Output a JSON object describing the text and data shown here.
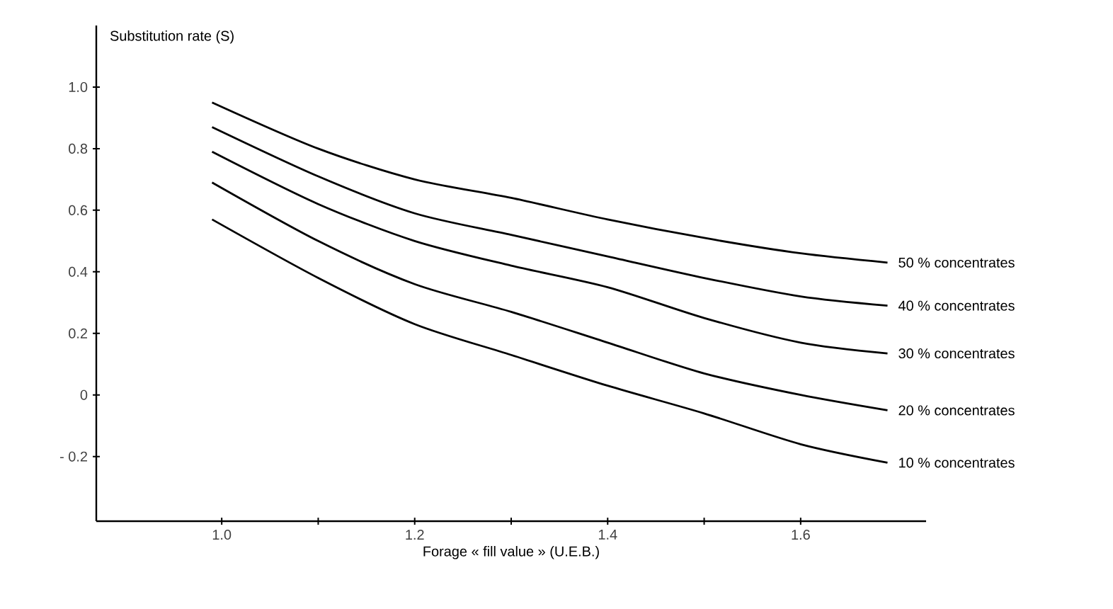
{
  "chart_data": {
    "type": "line",
    "xlabel": "Forage « fill value » (U.E.B.)",
    "ylabel": "Substitution rate (S)",
    "x": [
      0.99,
      1.1,
      1.2,
      1.3,
      1.4,
      1.5,
      1.6,
      1.69
    ],
    "series": [
      {
        "name": "50 % concentrates",
        "color": "#000000",
        "values": [
          0.95,
          0.8,
          0.7,
          0.64,
          0.57,
          0.51,
          0.46,
          0.43
        ]
      },
      {
        "name": "40 % concentrates",
        "color": "#000000",
        "values": [
          0.87,
          0.71,
          0.59,
          0.52,
          0.45,
          0.38,
          0.32,
          0.29
        ]
      },
      {
        "name": "30 % concentrates",
        "color": "#000000",
        "values": [
          0.79,
          0.62,
          0.5,
          0.42,
          0.35,
          0.25,
          0.17,
          0.135
        ]
      },
      {
        "name": "20 % concentrates",
        "color": "#000000",
        "values": [
          0.69,
          0.5,
          0.36,
          0.27,
          0.17,
          0.07,
          0.0,
          -0.05
        ]
      },
      {
        "name": "10 % concentrates",
        "color": "#000000",
        "values": [
          0.57,
          0.38,
          0.23,
          0.13,
          0.03,
          -0.06,
          -0.16,
          -0.22
        ]
      }
    ],
    "xlim": [
      0.87,
      1.73
    ],
    "ylim": [
      -0.41,
      1.2
    ],
    "xticks": [
      {
        "value": 1.0,
        "label": "1.0"
      },
      {
        "value": 1.1,
        "label": null
      },
      {
        "value": 1.2,
        "label": "1.2"
      },
      {
        "value": 1.3,
        "label": null
      },
      {
        "value": 1.4,
        "label": "1.4"
      },
      {
        "value": 1.5,
        "label": null
      },
      {
        "value": 1.6,
        "label": "1.6"
      }
    ],
    "yticks": [
      {
        "value": -0.2,
        "label": "- 0.2"
      },
      0,
      {
        "value": 0.2,
        "label": "0.2"
      },
      {
        "value": 0.4,
        "label": "0.4"
      },
      {
        "value": 0.6,
        "label": "0.6"
      },
      {
        "value": 0.8,
        "label": "0.8"
      },
      {
        "value": 1.0,
        "label": "1.0"
      }
    ],
    "grid": false,
    "marker": "none",
    "line_style": "solid"
  }
}
